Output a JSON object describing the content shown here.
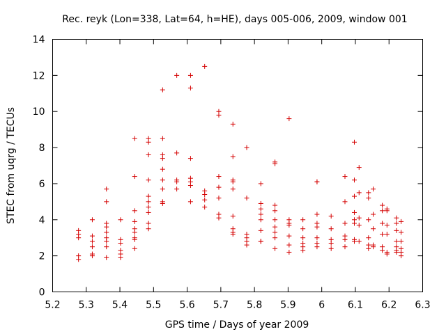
{
  "chart_data": {
    "type": "scatter",
    "title": "Rec. reyk (Lon=338, Lat=64, h=HE), days 005-006, 2009, window 001",
    "xlabel": "GPS time / Days of year 2009",
    "ylabel": "STEC from uqrg / TECUs",
    "xlim": [
      5.2,
      6.3
    ],
    "ylim": [
      0,
      14
    ],
    "xticks": [
      "5.2",
      "5.3",
      "5.4",
      "5.5",
      "5.6",
      "5.7",
      "5.8",
      "5.9",
      "6",
      "6.1",
      "6.2",
      "6.3"
    ],
    "yticks": [
      "0",
      "2",
      "4",
      "6",
      "8",
      "10",
      "12",
      "14"
    ],
    "grid": false,
    "marker": "+",
    "color": "#d40000",
    "points": [
      [
        5.277,
        3.4
      ],
      [
        5.277,
        3.2
      ],
      [
        5.277,
        3.0
      ],
      [
        5.277,
        2.0
      ],
      [
        5.277,
        1.8
      ],
      [
        5.318,
        4.0
      ],
      [
        5.318,
        3.1
      ],
      [
        5.318,
        2.8
      ],
      [
        5.318,
        2.5
      ],
      [
        5.318,
        2.1
      ],
      [
        5.318,
        2.0
      ],
      [
        5.36,
        5.7
      ],
      [
        5.36,
        5.0
      ],
      [
        5.36,
        3.8
      ],
      [
        5.36,
        3.6
      ],
      [
        5.36,
        3.3
      ],
      [
        5.36,
        3.0
      ],
      [
        5.36,
        2.8
      ],
      [
        5.36,
        2.5
      ],
      [
        5.36,
        1.9
      ],
      [
        5.402,
        4.0
      ],
      [
        5.402,
        2.9
      ],
      [
        5.402,
        2.7
      ],
      [
        5.402,
        2.3
      ],
      [
        5.402,
        2.1
      ],
      [
        5.402,
        1.9
      ],
      [
        5.444,
        8.5
      ],
      [
        5.444,
        6.4
      ],
      [
        5.444,
        4.5
      ],
      [
        5.444,
        3.9
      ],
      [
        5.444,
        3.5
      ],
      [
        5.444,
        3.3
      ],
      [
        5.444,
        3.0
      ],
      [
        5.444,
        2.9
      ],
      [
        5.444,
        2.4
      ],
      [
        5.485,
        8.5
      ],
      [
        5.485,
        8.3
      ],
      [
        5.485,
        7.6
      ],
      [
        5.485,
        6.2
      ],
      [
        5.485,
        5.3
      ],
      [
        5.485,
        5.0
      ],
      [
        5.485,
        4.7
      ],
      [
        5.485,
        4.4
      ],
      [
        5.485,
        3.8
      ],
      [
        5.485,
        3.5
      ],
      [
        5.527,
        11.2
      ],
      [
        5.527,
        8.5
      ],
      [
        5.527,
        7.6
      ],
      [
        5.527,
        7.4
      ],
      [
        5.527,
        6.8
      ],
      [
        5.527,
        6.2
      ],
      [
        5.527,
        5.7
      ],
      [
        5.527,
        5.0
      ],
      [
        5.527,
        4.9
      ],
      [
        5.569,
        12.0
      ],
      [
        5.569,
        7.7
      ],
      [
        5.569,
        6.2
      ],
      [
        5.569,
        6.1
      ],
      [
        5.569,
        5.7
      ],
      [
        5.61,
        12.0
      ],
      [
        5.61,
        11.3
      ],
      [
        5.61,
        7.4
      ],
      [
        5.61,
        6.3
      ],
      [
        5.61,
        6.1
      ],
      [
        5.61,
        5.9
      ],
      [
        5.61,
        5.0
      ],
      [
        5.652,
        12.5
      ],
      [
        5.652,
        5.6
      ],
      [
        5.652,
        5.4
      ],
      [
        5.652,
        5.1
      ],
      [
        5.652,
        4.7
      ],
      [
        5.694,
        10.0
      ],
      [
        5.694,
        9.8
      ],
      [
        5.694,
        6.4
      ],
      [
        5.694,
        5.8
      ],
      [
        5.694,
        5.2
      ],
      [
        5.694,
        4.3
      ],
      [
        5.694,
        4.1
      ],
      [
        5.736,
        9.3
      ],
      [
        5.736,
        7.5
      ],
      [
        5.736,
        6.2
      ],
      [
        5.736,
        6.1
      ],
      [
        5.736,
        5.7
      ],
      [
        5.736,
        4.2
      ],
      [
        5.736,
        3.5
      ],
      [
        5.736,
        3.3
      ],
      [
        5.736,
        3.2
      ],
      [
        5.777,
        8.0
      ],
      [
        5.777,
        5.2
      ],
      [
        5.777,
        3.2
      ],
      [
        5.777,
        3.0
      ],
      [
        5.777,
        2.8
      ],
      [
        5.777,
        2.6
      ],
      [
        5.819,
        6.0
      ],
      [
        5.819,
        4.9
      ],
      [
        5.819,
        4.6
      ],
      [
        5.819,
        4.3
      ],
      [
        5.819,
        4.0
      ],
      [
        5.819,
        3.4
      ],
      [
        5.819,
        2.8
      ],
      [
        5.819,
        2.8
      ],
      [
        5.861,
        7.2
      ],
      [
        5.861,
        7.1
      ],
      [
        5.861,
        4.8
      ],
      [
        5.861,
        4.5
      ],
      [
        5.861,
        4.0
      ],
      [
        5.861,
        3.6
      ],
      [
        5.861,
        3.3
      ],
      [
        5.861,
        3.0
      ],
      [
        5.861,
        2.4
      ],
      [
        5.903,
        9.6
      ],
      [
        5.903,
        4.0
      ],
      [
        5.903,
        3.8
      ],
      [
        5.903,
        3.7
      ],
      [
        5.903,
        3.1
      ],
      [
        5.903,
        2.6
      ],
      [
        5.903,
        2.2
      ],
      [
        5.944,
        4.0
      ],
      [
        5.944,
        3.5
      ],
      [
        5.944,
        3.0
      ],
      [
        5.944,
        2.7
      ],
      [
        5.944,
        2.5
      ],
      [
        5.944,
        2.3
      ],
      [
        5.986,
        6.1
      ],
      [
        5.986,
        6.1
      ],
      [
        5.986,
        4.3
      ],
      [
        5.986,
        3.8
      ],
      [
        5.986,
        3.6
      ],
      [
        5.986,
        3.0
      ],
      [
        5.986,
        2.7
      ],
      [
        5.986,
        2.5
      ],
      [
        6.028,
        4.2
      ],
      [
        6.028,
        3.5
      ],
      [
        6.028,
        2.9
      ],
      [
        6.028,
        2.7
      ],
      [
        6.028,
        2.4
      ],
      [
        6.069,
        6.4
      ],
      [
        6.069,
        5.0
      ],
      [
        6.069,
        3.8
      ],
      [
        6.069,
        3.1
      ],
      [
        6.069,
        2.9
      ],
      [
        6.069,
        2.5
      ],
      [
        6.097,
        8.3
      ],
      [
        6.097,
        6.2
      ],
      [
        6.097,
        5.3
      ],
      [
        6.097,
        4.4
      ],
      [
        6.097,
        4.0
      ],
      [
        6.097,
        3.8
      ],
      [
        6.097,
        2.9
      ],
      [
        6.097,
        2.8
      ],
      [
        6.111,
        6.9
      ],
      [
        6.111,
        5.5
      ],
      [
        6.111,
        4.1
      ],
      [
        6.111,
        3.7
      ],
      [
        6.111,
        2.8
      ],
      [
        6.139,
        5.5
      ],
      [
        6.139,
        5.2
      ],
      [
        6.139,
        4.0
      ],
      [
        6.139,
        3.0
      ],
      [
        6.139,
        2.6
      ],
      [
        6.139,
        2.4
      ],
      [
        6.153,
        5.7
      ],
      [
        6.153,
        4.3
      ],
      [
        6.153,
        3.5
      ],
      [
        6.153,
        2.6
      ],
      [
        6.153,
        2.5
      ],
      [
        6.18,
        4.8
      ],
      [
        6.18,
        4.5
      ],
      [
        6.18,
        3.8
      ],
      [
        6.18,
        3.2
      ],
      [
        6.18,
        2.5
      ],
      [
        6.18,
        2.3
      ],
      [
        6.194,
        4.6
      ],
      [
        6.194,
        4.5
      ],
      [
        6.194,
        3.7
      ],
      [
        6.194,
        3.2
      ],
      [
        6.194,
        2.2
      ],
      [
        6.194,
        2.1
      ],
      [
        6.222,
        4.1
      ],
      [
        6.222,
        3.8
      ],
      [
        6.222,
        3.4
      ],
      [
        6.222,
        2.8
      ],
      [
        6.222,
        2.5
      ],
      [
        6.222,
        2.3
      ],
      [
        6.222,
        2.2
      ],
      [
        6.236,
        3.9
      ],
      [
        6.236,
        3.3
      ],
      [
        6.236,
        2.8
      ],
      [
        6.236,
        2.4
      ],
      [
        6.236,
        2.2
      ],
      [
        6.236,
        2.0
      ]
    ]
  }
}
